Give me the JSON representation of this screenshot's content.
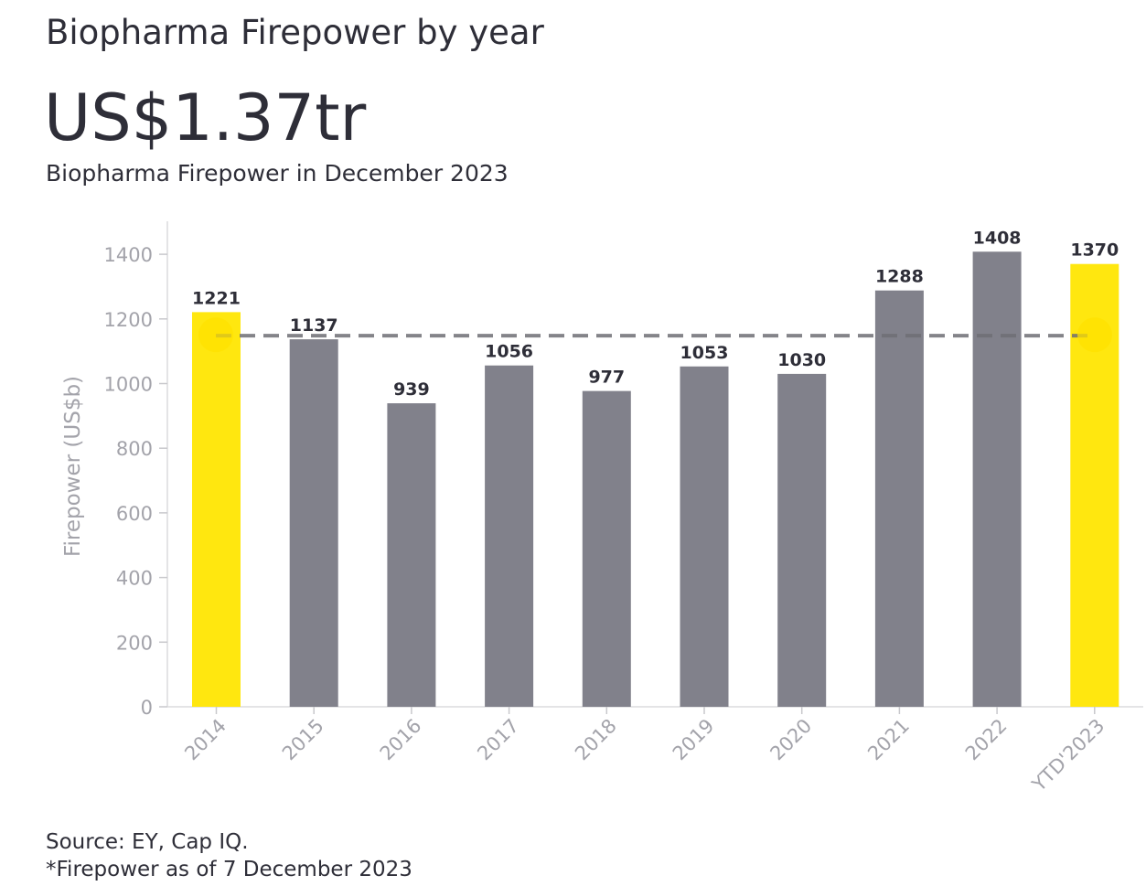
{
  "title": "Biopharma Firepower by year",
  "headline_value": "US$1.37tr",
  "subtitle": "Biopharma Firepower in December 2023",
  "source": "Source: EY, Cap IQ.",
  "footnote": "*Firepower as of 7 December 2023",
  "colors": {
    "bar_default": "#81818b",
    "bar_highlight": "#ffe70f",
    "reference_line": "#6f6f75",
    "axis_text": "#a3a3aa",
    "label_text": "#2e2e38"
  },
  "chart_data": {
    "type": "bar",
    "categories": [
      "2014",
      "2015",
      "2016",
      "2017",
      "2018",
      "2019",
      "2020",
      "2021",
      "2022",
      "YTD'2023"
    ],
    "values": [
      1221,
      1137,
      939,
      1056,
      977,
      1053,
      1030,
      1288,
      1408,
      1370
    ],
    "data_labels": [
      "1221",
      "1137",
      "939",
      "1056",
      "977",
      "1053",
      "1030",
      "1288",
      "1408",
      "1370"
    ],
    "highlighted": [
      "2014",
      "YTD'2023"
    ],
    "reference_line_value": 1148,
    "ylabel": "Firepower (US$b)",
    "xlabel": "",
    "ylim": [
      0,
      1500
    ],
    "yticks": [
      0,
      200,
      400,
      600,
      800,
      1000,
      1200,
      1400
    ],
    "grid": false,
    "legend": "none"
  }
}
